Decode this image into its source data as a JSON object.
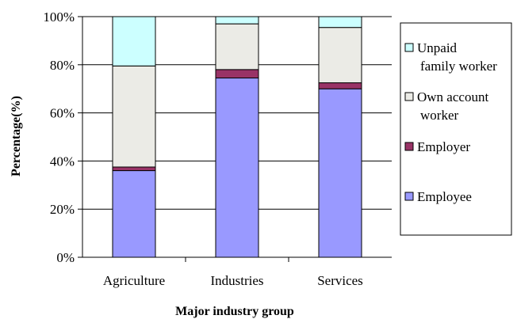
{
  "chart_data": {
    "type": "stacked-bar",
    "categories": [
      "Agriculture",
      "Industries",
      "Services"
    ],
    "series": [
      {
        "name": "Employee",
        "color": "#9999ff",
        "values": [
          36,
          74.5,
          70
        ]
      },
      {
        "name": "Employer",
        "color": "#993366",
        "values": [
          1.5,
          3.5,
          2.5
        ]
      },
      {
        "name": "Own account worker",
        "color": "#ebebe6",
        "values": [
          42,
          19,
          23
        ]
      },
      {
        "name": "Unpaid family worker",
        "color": "#ccffff",
        "values": [
          20.5,
          3,
          4.5
        ]
      }
    ],
    "ylabel": "Percentage(%)",
    "xlabel": "Major industry group",
    "ylim": [
      0,
      100
    ],
    "yticks": [
      "0%",
      "20%",
      "40%",
      "60%",
      "80%",
      "100%"
    ],
    "grid": true,
    "legend": {
      "placement": "right",
      "items": [
        {
          "lines": [
            "Unpaid",
            "family worker"
          ],
          "color": "#ccffff"
        },
        {
          "lines": [
            "Own account",
            "worker"
          ],
          "color": "#ebebe6"
        },
        {
          "lines": [
            "Employer"
          ],
          "color": "#993366"
        },
        {
          "lines": [
            "Employee"
          ],
          "color": "#9999ff"
        }
      ]
    }
  }
}
